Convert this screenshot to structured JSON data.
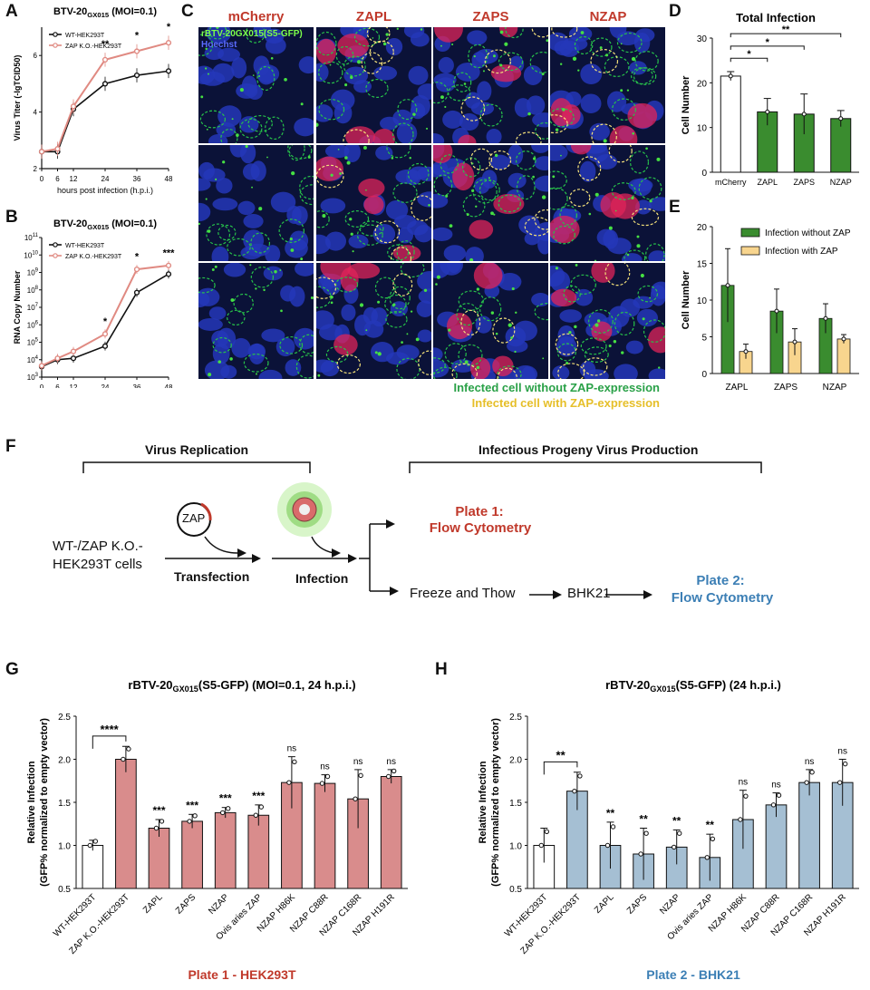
{
  "panels": {
    "A": "A",
    "B": "B",
    "C": "C",
    "D": "D",
    "E": "E",
    "F": "F",
    "G": "G",
    "H": "H"
  },
  "colors": {
    "wt_line": "#111111",
    "ko_line": "#e08a82",
    "green_bar": "#3a8c2f",
    "yellow_bar": "#f8d58e",
    "pink_bar": "#d98c8c",
    "blue_bar": "#a5bfd3",
    "red_text": "#c0392b",
    "blue_text": "#3c7fb5",
    "green_text": "#2aa148",
    "yellow_text": "#e6bf29"
  },
  "panel_C": {
    "columns": [
      "mCherry",
      "ZAPL",
      "ZAPS",
      "NZAP"
    ],
    "legend_virus": "rBTV-20GX015(S5-GFP)",
    "legend_hoechst": "Hoechst",
    "caption_green": "Infected cell without ZAP-expression",
    "caption_yellow": "Infected cell with ZAP-expression"
  },
  "panel_F": {
    "virus_replication": "Virus Replication",
    "progeny": "Infectious Progeny Virus Production",
    "zap": "ZAP",
    "cells_line1": "WT-/ZAP K.O.-",
    "cells_line2": "HEK293T cells",
    "transfection": "Transfection",
    "infection": "Infection",
    "plate1_line1": "Plate 1:",
    "plate1_line2": "Flow Cytometry",
    "freeze": "Freeze and Thow",
    "bhk": "BHK21",
    "plate2_line1": "Plate 2:",
    "plate2_line2": "Flow Cytometry"
  },
  "chart_data": [
    {
      "panel": "A",
      "type": "line",
      "title": "BTV-20GX015 (MOI=0.1)",
      "xlabel": "hours post infection (h.p.i.)",
      "ylabel": "Virus Titer (-lgTCID50)",
      "x": [
        0,
        6,
        12,
        24,
        36,
        48
      ],
      "ylim": [
        2,
        7
      ],
      "yticks": [
        2,
        4,
        6
      ],
      "series": [
        {
          "name": "WT-HEK293T",
          "values": [
            2.6,
            2.6,
            4.1,
            5.0,
            5.3,
            5.45
          ]
        },
        {
          "name": "ZAP K.O.-HEK293T",
          "values": [
            2.6,
            2.7,
            4.2,
            5.85,
            6.15,
            6.45
          ]
        }
      ],
      "annotations": [
        {
          "x": 24,
          "label": "**"
        },
        {
          "x": 36,
          "label": "*"
        },
        {
          "x": 48,
          "label": "*"
        }
      ]
    },
    {
      "panel": "B",
      "type": "line",
      "title": "BTV-20GX015 (MOI=0.1)",
      "xlabel": "hours post infection (h.p.i.)",
      "ylabel": "RNA Copy Number",
      "scale": "log",
      "x": [
        0,
        6,
        12,
        24,
        36,
        48
      ],
      "ylim": [
        1000,
        100000000000
      ],
      "yticks": [
        "10^3",
        "10^4",
        "10^5",
        "10^6",
        "10^7",
        "10^8",
        "10^9",
        "10^10",
        "10^11"
      ],
      "series": [
        {
          "name": "WT-HEK293T",
          "values": [
            4000,
            10000,
            12000,
            60000,
            70000000,
            800000000
          ]
        },
        {
          "name": "ZAP K.O.-HEK293T",
          "values": [
            4500,
            12000,
            30000,
            300000,
            1500000000,
            2500000000
          ]
        }
      ],
      "annotations": [
        {
          "x": 24,
          "label": "*"
        },
        {
          "x": 36,
          "label": "*"
        },
        {
          "x": 48,
          "label": "***"
        }
      ]
    },
    {
      "panel": "D",
      "type": "bar",
      "title": "Total Infection",
      "ylabel": "Cell Number",
      "categories": [
        "mCherry",
        "ZAPL",
        "ZAPS",
        "NZAP"
      ],
      "values": [
        21.5,
        13.5,
        13.0,
        12.0
      ],
      "errors": [
        1.0,
        3.0,
        4.5,
        1.8
      ],
      "ylim": [
        0,
        30
      ],
      "yticks": [
        0,
        10,
        20,
        30
      ],
      "brackets": [
        {
          "from": 0,
          "to": 1,
          "label": "*"
        },
        {
          "from": 0,
          "to": 2,
          "label": "*"
        },
        {
          "from": 0,
          "to": 3,
          "label": "**"
        }
      ]
    },
    {
      "panel": "E",
      "type": "bar",
      "ylabel": "Cell Number",
      "categories": [
        "ZAPL",
        "ZAPS",
        "NZAP"
      ],
      "ylim": [
        0,
        20
      ],
      "yticks": [
        0,
        5,
        10,
        15,
        20
      ],
      "series": [
        {
          "name": "Infection without ZAP",
          "values": [
            12.0,
            8.5,
            7.5
          ],
          "errors": [
            5.0,
            3.0,
            2.0
          ]
        },
        {
          "name": "Infection with ZAP",
          "values": [
            3.0,
            4.3,
            4.7
          ],
          "errors": [
            1.0,
            1.8,
            0.6
          ]
        }
      ]
    },
    {
      "panel": "G",
      "type": "bar",
      "title": "rBTV-20GX015(S5-GFP) (MOI=0.1, 24 h.p.i.)",
      "ylabel": "Relative Infection (GFP% normalized to empty vector)",
      "footer": "Plate 1 - HEK293T",
      "categories": [
        "WT-HEK293T",
        "ZAP K.O.-HEK293T",
        "ZAPL",
        "ZAPS",
        "NZAP",
        "Ovis aries ZAP",
        "NZAP H86K",
        "NZAP C88R",
        "NZAP C168R",
        "NZAP H191R"
      ],
      "values": [
        1.0,
        2.0,
        1.2,
        1.28,
        1.38,
        1.35,
        1.73,
        1.72,
        1.54,
        1.8
      ],
      "errors": [
        0.06,
        0.15,
        0.1,
        0.08,
        0.06,
        0.12,
        0.3,
        0.1,
        0.34,
        0.08
      ],
      "significance": [
        "",
        "****",
        "***",
        "***",
        "***",
        "***",
        "ns",
        "ns",
        "ns",
        "ns"
      ],
      "ylim": [
        0.5,
        2.5
      ],
      "yticks": [
        0.5,
        1.0,
        1.5,
        2.0,
        2.5
      ]
    },
    {
      "panel": "H",
      "type": "bar",
      "title": "rBTV-20GX015(S5-GFP) (24 h.p.i.)",
      "ylabel": "Relative Infection (GFP% normalized to empty vector)",
      "footer": "Plate 2 - BHK21",
      "categories": [
        "WT-HEK293T",
        "ZAP K.O.-HEK293T",
        "ZAPL",
        "ZAPS",
        "NZAP",
        "Ovis aries ZAP",
        "NZAP H86K",
        "NZAP C88R",
        "NZAP C168R",
        "NZAP H191R"
      ],
      "values": [
        1.0,
        1.63,
        1.0,
        0.9,
        0.98,
        0.86,
        1.3,
        1.47,
        1.73,
        1.73
      ],
      "errors": [
        0.2,
        0.22,
        0.27,
        0.3,
        0.2,
        0.27,
        0.34,
        0.14,
        0.15,
        0.27
      ],
      "significance": [
        "",
        "**",
        "**",
        "**",
        "**",
        "**",
        "ns",
        "ns",
        "ns",
        "ns"
      ],
      "ylim": [
        0.5,
        2.5
      ],
      "yticks": [
        0.5,
        1.0,
        1.5,
        2.0,
        2.5
      ]
    }
  ]
}
